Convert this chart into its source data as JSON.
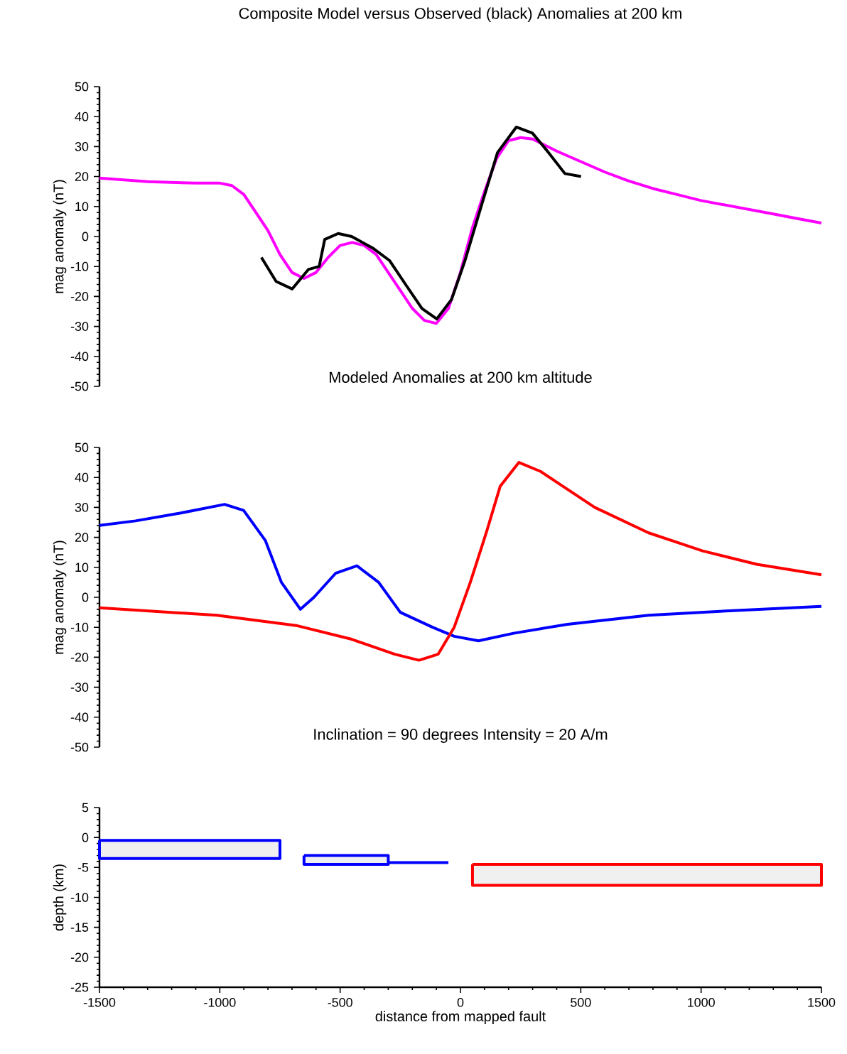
{
  "chart_data": [
    {
      "type": "line",
      "title": "Composite Model versus Observed (black) Anomalies at 200 km",
      "ylabel": "mag anomaly (nT)",
      "xlim": [
        -1500,
        1500
      ],
      "ylim": [
        -50,
        50
      ],
      "yticks": [
        -50,
        -40,
        -30,
        -20,
        -10,
        0,
        10,
        20,
        30,
        40,
        50
      ],
      "tick_labels": "y",
      "series": [
        {
          "color": "#ff00ff",
          "x": [
            -1500,
            -1300,
            -1100,
            -1000,
            -950,
            -900,
            -850,
            -800,
            -750,
            -700,
            -650,
            -600,
            -550,
            -500,
            -450,
            -400,
            -350,
            -300,
            -250,
            -200,
            -150,
            -100,
            -50,
            0,
            50,
            100,
            150,
            200,
            250,
            300,
            400,
            500,
            600,
            700,
            800,
            900,
            1000,
            1100,
            1200,
            1300,
            1400,
            1500
          ],
          "values": [
            19.5,
            18.3,
            17.8,
            17.8,
            17,
            14,
            8,
            2,
            -6,
            -12,
            -14,
            -12,
            -7,
            -3,
            -2,
            -3,
            -6,
            -12,
            -18,
            -24,
            -28,
            -29,
            -24,
            -12,
            3,
            15,
            26,
            32,
            33,
            32.5,
            28.5,
            25,
            21.5,
            18.5,
            16,
            14,
            12,
            10.5,
            9,
            7.5,
            6,
            4.5
          ]
        },
        {
          "color": "#000000",
          "x": [
            -827,
            -766,
            -699,
            -632,
            -587,
            -564,
            -508,
            -452,
            -362,
            -295,
            -228,
            -160,
            -98,
            -37,
            19,
            86,
            154,
            232,
            299,
            356,
            434,
            501
          ],
          "values": [
            -7,
            -15,
            -17.5,
            -11,
            -10,
            -1,
            1,
            0,
            -4,
            -8,
            -16,
            -24,
            -27.5,
            -21,
            -8,
            10,
            28,
            36.5,
            34.5,
            29,
            21,
            20
          ]
        }
      ]
    },
    {
      "type": "line",
      "title": "Modeled Anomalies at 200 km altitude",
      "ylabel": "mag anomaly (nT)",
      "xlim": [
        -1500,
        1500
      ],
      "ylim": [
        -50,
        50
      ],
      "yticks": [
        -50,
        -40,
        -30,
        -20,
        -10,
        0,
        10,
        20,
        30,
        40,
        50
      ],
      "tick_labels": "y",
      "series": [
        {
          "color": "#0000ff",
          "x": [
            -1500,
            -1350,
            -1170,
            -980,
            -901,
            -811,
            -744,
            -665,
            -609,
            -519,
            -430,
            -340,
            -250,
            -116,
            -26,
            75,
            221,
            445,
            782,
            1118,
            1500
          ],
          "values": [
            24,
            25.5,
            28,
            31,
            29,
            19,
            5,
            -4,
            0,
            8,
            10.5,
            5,
            -5,
            -10,
            -13,
            -14.5,
            -12,
            -9,
            -6,
            -4.5,
            -3
          ]
        },
        {
          "color": "#ff0000",
          "x": [
            -1500,
            -1013,
            -677,
            -452,
            -273,
            -172,
            -93,
            -26,
            41,
            109,
            165,
            243,
            333,
            558,
            782,
            1006,
            1231,
            1500
          ],
          "values": [
            -3.5,
            -6,
            -9.5,
            -14,
            -19,
            -21,
            -19,
            -10,
            5,
            22,
            37,
            45,
            42,
            30,
            21.5,
            15.5,
            11,
            7.5
          ]
        }
      ]
    },
    {
      "type": "line",
      "title": "Inclination = 90 degrees  Intensity = 20 A/m",
      "xlabel": "distance from mapped fault",
      "ylabel": "depth (km)",
      "xlim": [
        -1500,
        1500
      ],
      "ylim": [
        -25,
        5
      ],
      "xticks": [
        -1500,
        -1000,
        -500,
        0,
        500,
        1000,
        1500
      ],
      "yticks": [
        -25,
        -20,
        -15,
        -10,
        -5,
        0,
        5
      ],
      "series": [
        {
          "type": "area",
          "color": "#0000ff",
          "x": [
            -1500,
            -750,
            -750,
            -1500,
            -1500
          ],
          "values": [
            -0.5,
            -0.5,
            -3.5,
            -3.5,
            -0.5
          ]
        },
        {
          "type": "area",
          "color": "#0000ff",
          "x": [
            -650,
            -300,
            -300,
            -650,
            -650
          ],
          "values": [
            -3,
            -3,
            -4.5,
            -4.5,
            -3
          ]
        },
        {
          "type": "line",
          "color": "#0000ff",
          "x": [
            -300,
            -50
          ],
          "values": [
            -4.2,
            -4.2
          ]
        },
        {
          "type": "area",
          "color": "#ff0000",
          "x": [
            50,
            1500,
            1500,
            50,
            50
          ],
          "values": [
            -4.5,
            -4.5,
            -8,
            -8,
            -4.5
          ]
        }
      ]
    }
  ]
}
